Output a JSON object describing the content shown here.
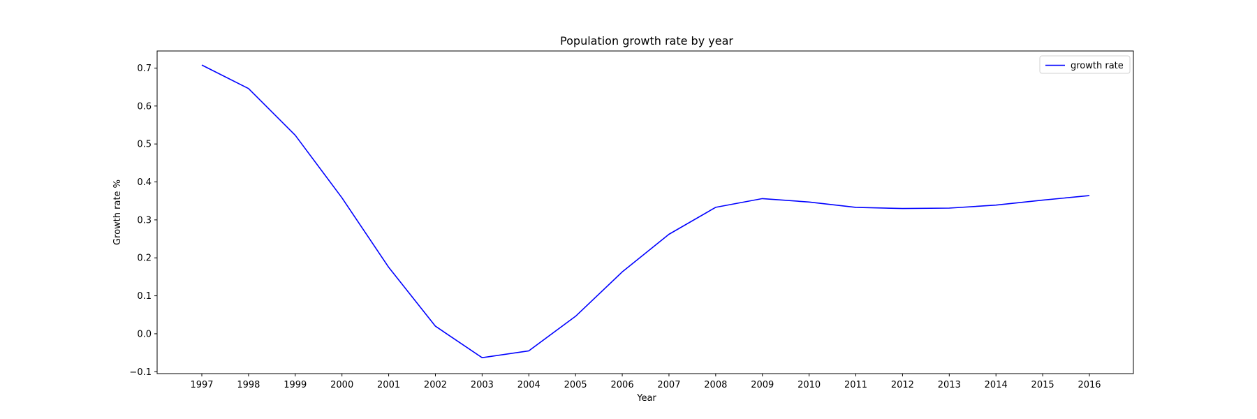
{
  "chart_data": {
    "type": "line",
    "title": "Population growth rate by year",
    "xlabel": "Year",
    "ylabel": "Growth rate %",
    "x": [
      "1997",
      "1998",
      "1999",
      "2000",
      "2001",
      "2002",
      "2003",
      "2004",
      "2005",
      "2006",
      "2007",
      "2008",
      "2009",
      "2010",
      "2011",
      "2012",
      "2013",
      "2014",
      "2015",
      "2016"
    ],
    "series": [
      {
        "name": "growth rate",
        "color": "#0000ff",
        "values": [
          0.708,
          0.646,
          0.523,
          0.358,
          0.175,
          0.02,
          -0.063,
          -0.045,
          0.046,
          0.163,
          0.262,
          0.333,
          0.356,
          0.347,
          0.333,
          0.33,
          0.331,
          0.339,
          0.352,
          0.364
        ]
      }
    ],
    "ylim": [
      -0.105,
      0.745
    ],
    "yticks": [
      "−0.1",
      "0.0",
      "0.1",
      "0.2",
      "0.3",
      "0.4",
      "0.5",
      "0.6",
      "0.7"
    ],
    "legend_position": "top-right",
    "grid": false
  }
}
